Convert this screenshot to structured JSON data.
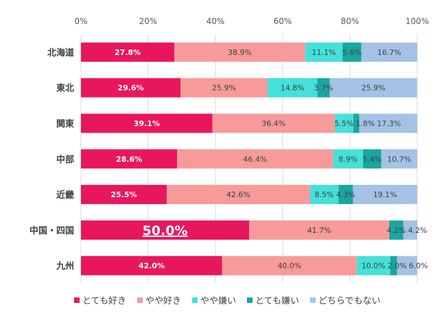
{
  "chart_data": {
    "type": "bar",
    "orientation": "horizontal",
    "stacked": true,
    "percent": true,
    "xlim": [
      0,
      100
    ],
    "xticks": [
      "0%",
      "20%",
      "40%",
      "60%",
      "80%",
      "100%"
    ],
    "grid": true,
    "legend_position": "bottom",
    "categories": [
      "北海道",
      "東北",
      "関東",
      "中部",
      "近畿",
      "中国・四国",
      "九州"
    ],
    "series": [
      {
        "name": "とても好き",
        "color": "#e8175d",
        "values": [
          27.8,
          29.6,
          39.1,
          28.6,
          25.5,
          50.0,
          42.0
        ]
      },
      {
        "name": "やや好き",
        "color": "#f89a9a",
        "values": [
          38.9,
          25.9,
          36.4,
          46.4,
          42.6,
          41.7,
          40.0
        ]
      },
      {
        "name": "やや嫌い",
        "color": "#45e0da",
        "values": [
          11.1,
          14.8,
          5.5,
          8.9,
          8.5,
          0,
          10.0
        ]
      },
      {
        "name": "とても嫌い",
        "color": "#1aa6a0",
        "values": [
          5.6,
          3.7,
          1.8,
          5.4,
          4.3,
          4.2,
          2.0
        ]
      },
      {
        "name": "どちらでもない",
        "color": "#a4c2e6",
        "values": [
          16.7,
          25.9,
          17.3,
          10.7,
          19.1,
          4.2,
          6.0
        ]
      }
    ],
    "highlight": {
      "category": "中国・四国",
      "series": "とても好き"
    }
  }
}
